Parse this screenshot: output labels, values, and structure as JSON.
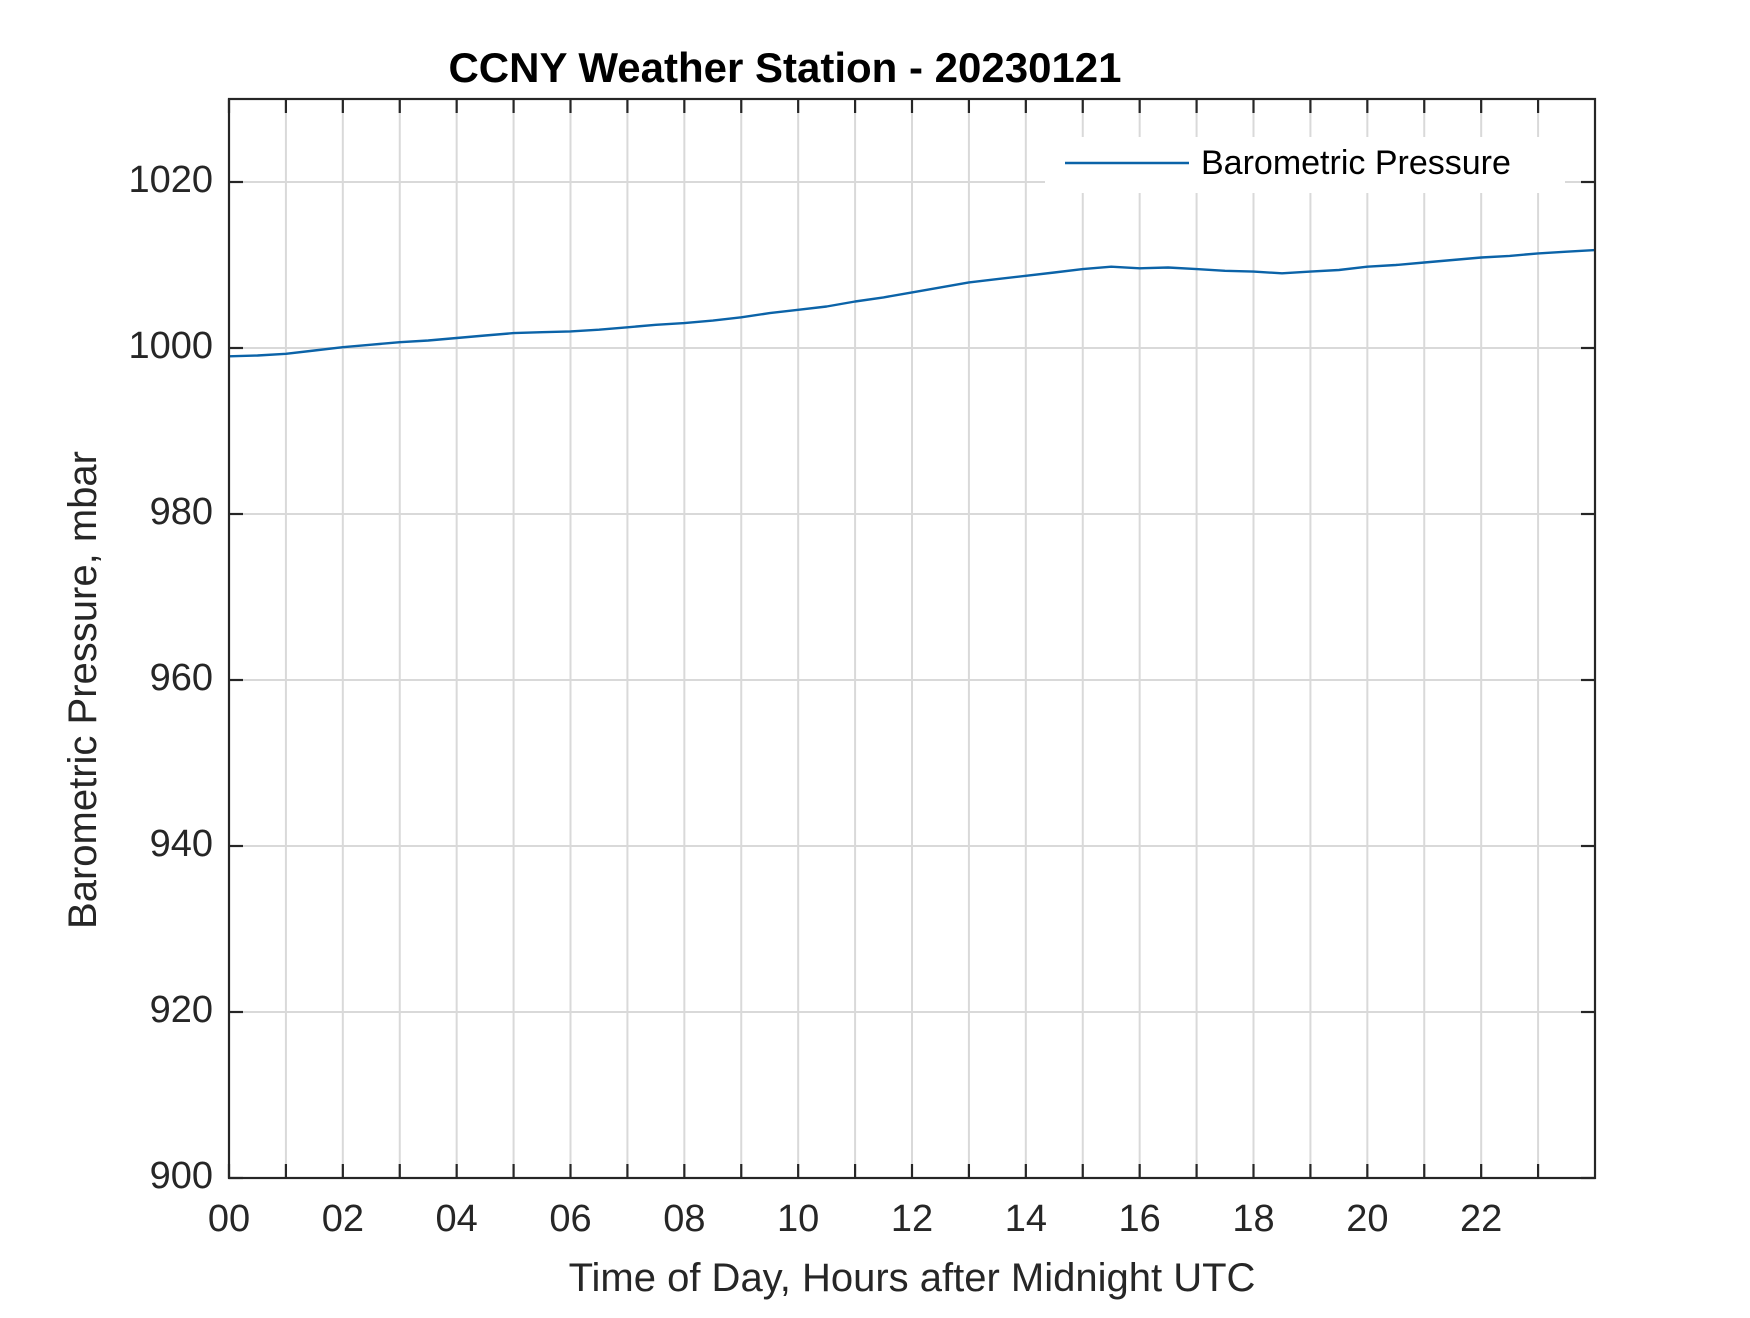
{
  "chart_data": {
    "type": "line",
    "title": "CCNY Weather Station - 20230121",
    "xlabel": "Time of Day, Hours after Midnight UTC",
    "ylabel": "Barometric Pressure, mbar",
    "xlim": [
      0,
      24
    ],
    "ylim": [
      900,
      1030
    ],
    "x_ticks": [
      0,
      2,
      4,
      6,
      8,
      10,
      12,
      14,
      16,
      18,
      20,
      22
    ],
    "x_tick_labels": [
      "00",
      "02",
      "04",
      "06",
      "08",
      "10",
      "12",
      "14",
      "16",
      "18",
      "20",
      "22"
    ],
    "x_minor_ticks": [
      1,
      3,
      5,
      7,
      9,
      11,
      13,
      15,
      17,
      19,
      21,
      23
    ],
    "y_ticks": [
      900,
      920,
      940,
      960,
      980,
      1000,
      1020
    ],
    "y_tick_labels": [
      "900",
      "920",
      "940",
      "960",
      "980",
      "1000",
      "1020"
    ],
    "grid": true,
    "legend_position": "top-right",
    "series": [
      {
        "name": "Barometric Pressure",
        "color": "#0b63a8",
        "x": [
          0,
          0.5,
          1,
          1.5,
          2,
          2.5,
          3,
          3.5,
          4,
          4.5,
          5,
          5.5,
          6,
          6.5,
          7,
          7.5,
          8,
          8.5,
          9,
          9.5,
          10,
          10.5,
          11,
          11.5,
          12,
          12.5,
          13,
          13.5,
          14,
          14.5,
          15,
          15.5,
          16,
          16.5,
          17,
          17.5,
          18,
          18.5,
          19,
          19.5,
          20,
          20.5,
          21,
          21.5,
          22,
          22.5,
          23,
          23.5,
          24
        ],
        "y": [
          999.0,
          999.1,
          999.3,
          999.7,
          1000.1,
          1000.4,
          1000.7,
          1000.9,
          1001.2,
          1001.5,
          1001.8,
          1001.9,
          1002.0,
          1002.2,
          1002.5,
          1002.8,
          1003.0,
          1003.3,
          1003.7,
          1004.2,
          1004.6,
          1005.0,
          1005.6,
          1006.1,
          1006.7,
          1007.3,
          1007.9,
          1008.3,
          1008.7,
          1009.1,
          1009.5,
          1009.8,
          1009.6,
          1009.7,
          1009.5,
          1009.3,
          1009.2,
          1009.0,
          1009.2,
          1009.4,
          1009.8,
          1010.0,
          1010.3,
          1010.6,
          1010.9,
          1011.1,
          1011.4,
          1011.6,
          1011.8
        ]
      }
    ]
  }
}
